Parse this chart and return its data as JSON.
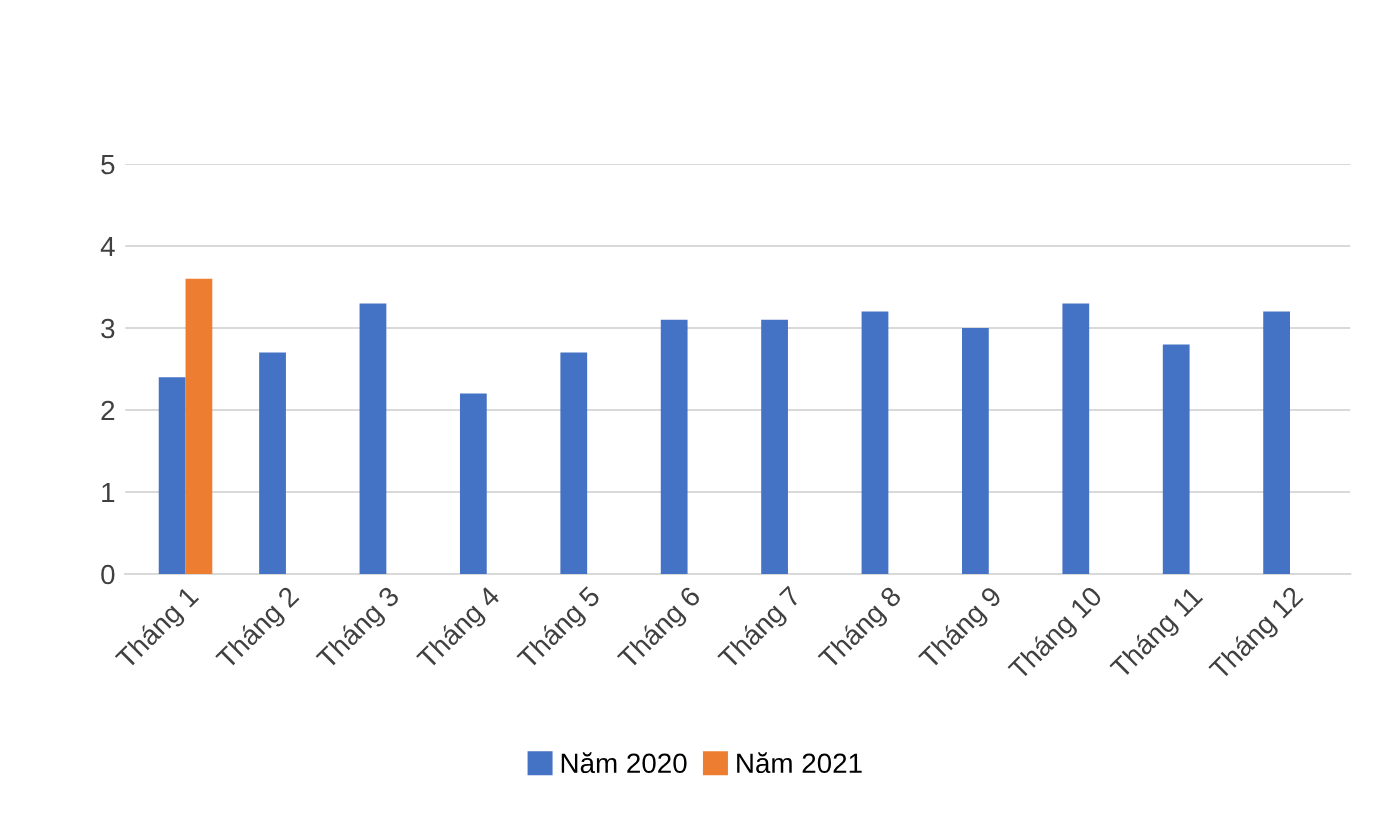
{
  "chart_data": {
    "type": "bar",
    "categories": [
      "Tháng 1",
      "Tháng 2",
      "Tháng 3",
      "Tháng 4",
      "Tháng 5",
      "Tháng 6",
      "Tháng 7",
      "Tháng 8",
      "Tháng 9",
      "Tháng 10",
      "Tháng 11",
      "Tháng 12"
    ],
    "series": [
      {
        "name": "Năm 2020",
        "color": "#4472c4",
        "values": [
          2.4,
          2.7,
          3.3,
          2.2,
          2.7,
          3.1,
          3.1,
          3.2,
          3.0,
          3.3,
          2.8,
          3.2
        ]
      },
      {
        "name": "Năm 2021",
        "color": "#ed7d31",
        "values": [
          3.6,
          null,
          null,
          null,
          null,
          null,
          null,
          null,
          null,
          null,
          null,
          null
        ]
      }
    ],
    "ylim": [
      0,
      5
    ],
    "yticks": [
      0,
      1,
      2,
      3,
      4,
      5
    ],
    "grid": "y",
    "legend": "bottom"
  }
}
